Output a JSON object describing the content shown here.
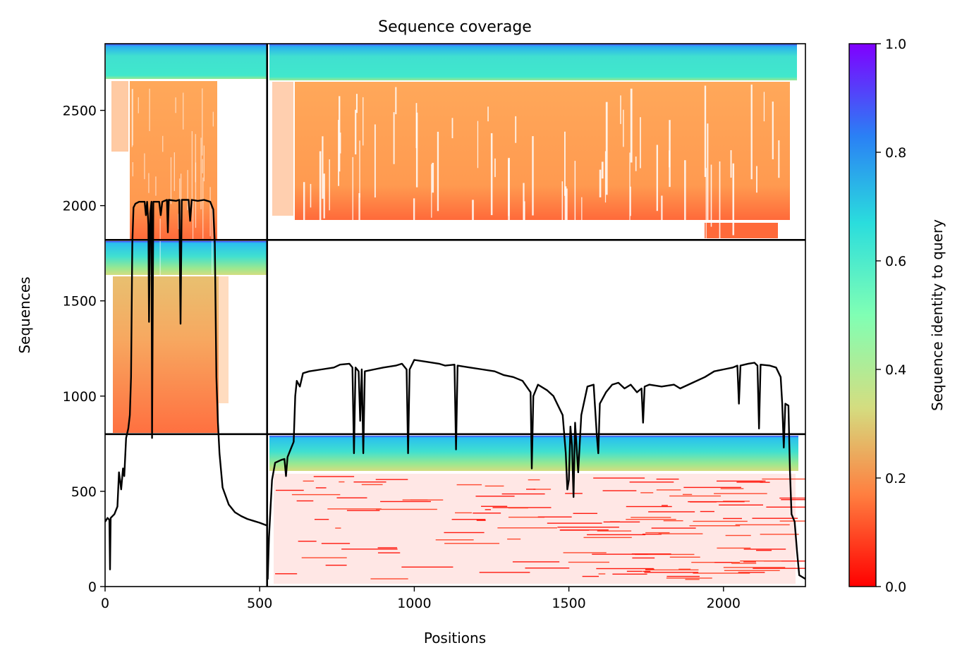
{
  "chart_data": {
    "type": "heatmap",
    "title": "Sequence coverage",
    "xlabel": "Positions",
    "ylabel": "Sequences",
    "xlim": [
      0,
      2265
    ],
    "ylim": [
      0,
      2850
    ],
    "xticks": [
      0,
      500,
      1000,
      1500,
      2000
    ],
    "yticks": [
      0,
      500,
      1000,
      1500,
      2000,
      2500
    ],
    "colorbar": {
      "label": "Sequence identity to query",
      "range": [
        0,
        1
      ],
      "ticks": [
        "0.0",
        "0.2",
        "0.4",
        "0.6",
        "0.8",
        "1.0"
      ],
      "colormap": "rainbow",
      "stops": [
        "#ff0000",
        "#ff7f40",
        "#d4dd80",
        "#80ffb4",
        "#2adddd",
        "#2a80f5",
        "#8000ff"
      ]
    },
    "blocks": [
      {
        "name": "chain-1-msa-upper",
        "x": [
          0,
          524
        ],
        "rows": [
          1820,
          2850
        ]
      },
      {
        "name": "chain-1-msa-lower",
        "x": [
          0,
          524
        ],
        "rows": [
          800,
          1820
        ]
      },
      {
        "name": "chain-2-msa-upper",
        "x": [
          524,
          2265
        ],
        "rows": [
          1820,
          2850
        ]
      },
      {
        "name": "chain-2-msa-lower",
        "x": [
          524,
          2265
        ],
        "rows": [
          0,
          800
        ]
      }
    ],
    "separators": {
      "x": [
        524
      ],
      "y": [
        800,
        1820
      ]
    },
    "coverage_series": {
      "name": "coverage",
      "color": "#000000",
      "points": [
        [
          0,
          340
        ],
        [
          8,
          360
        ],
        [
          14,
          350
        ],
        [
          16,
          90
        ],
        [
          18,
          360
        ],
        [
          30,
          380
        ],
        [
          40,
          420
        ],
        [
          45,
          600
        ],
        [
          52,
          510
        ],
        [
          58,
          620
        ],
        [
          62,
          580
        ],
        [
          68,
          780
        ],
        [
          75,
          830
        ],
        [
          80,
          900
        ],
        [
          84,
          1100
        ],
        [
          88,
          1800
        ],
        [
          92,
          1990
        ],
        [
          98,
          2010
        ],
        [
          110,
          2020
        ],
        [
          128,
          2020
        ],
        [
          132,
          1950
        ],
        [
          136,
          2020
        ],
        [
          140,
          1900
        ],
        [
          142,
          1390
        ],
        [
          146,
          1960
        ],
        [
          150,
          2020
        ],
        [
          152,
          780
        ],
        [
          156,
          2020
        ],
        [
          175,
          2020
        ],
        [
          180,
          1950
        ],
        [
          185,
          2020
        ],
        [
          200,
          2030
        ],
        [
          203,
          1860
        ],
        [
          206,
          2030
        ],
        [
          230,
          2025
        ],
        [
          240,
          2030
        ],
        [
          244,
          1380
        ],
        [
          248,
          2030
        ],
        [
          270,
          2030
        ],
        [
          275,
          1920
        ],
        [
          280,
          2030
        ],
        [
          300,
          2025
        ],
        [
          320,
          2030
        ],
        [
          340,
          2020
        ],
        [
          350,
          1980
        ],
        [
          355,
          1800
        ],
        [
          360,
          1100
        ],
        [
          365,
          860
        ],
        [
          370,
          700
        ],
        [
          380,
          520
        ],
        [
          400,
          430
        ],
        [
          420,
          390
        ],
        [
          440,
          370
        ],
        [
          460,
          355
        ],
        [
          480,
          345
        ],
        [
          500,
          335
        ],
        [
          524,
          320
        ],
        [
          526,
          40
        ],
        [
          530,
          260
        ],
        [
          540,
          560
        ],
        [
          550,
          650
        ],
        [
          570,
          665
        ],
        [
          580,
          670
        ],
        [
          585,
          580
        ],
        [
          590,
          680
        ],
        [
          600,
          720
        ],
        [
          610,
          760
        ],
        [
          615,
          1000
        ],
        [
          620,
          1080
        ],
        [
          630,
          1050
        ],
        [
          640,
          1120
        ],
        [
          660,
          1130
        ],
        [
          700,
          1140
        ],
        [
          740,
          1150
        ],
        [
          760,
          1165
        ],
        [
          790,
          1170
        ],
        [
          800,
          1150
        ],
        [
          805,
          700
        ],
        [
          810,
          1150
        ],
        [
          820,
          1130
        ],
        [
          825,
          870
        ],
        [
          830,
          1140
        ],
        [
          835,
          700
        ],
        [
          840,
          1130
        ],
        [
          870,
          1140
        ],
        [
          900,
          1150
        ],
        [
          940,
          1160
        ],
        [
          960,
          1170
        ],
        [
          975,
          1140
        ],
        [
          980,
          700
        ],
        [
          985,
          1140
        ],
        [
          1000,
          1190
        ],
        [
          1040,
          1180
        ],
        [
          1080,
          1170
        ],
        [
          1100,
          1160
        ],
        [
          1130,
          1165
        ],
        [
          1135,
          720
        ],
        [
          1140,
          1160
        ],
        [
          1180,
          1150
        ],
        [
          1220,
          1140
        ],
        [
          1260,
          1130
        ],
        [
          1290,
          1110
        ],
        [
          1320,
          1100
        ],
        [
          1350,
          1080
        ],
        [
          1376,
          1020
        ],
        [
          1380,
          620
        ],
        [
          1385,
          1000
        ],
        [
          1400,
          1060
        ],
        [
          1430,
          1030
        ],
        [
          1450,
          1000
        ],
        [
          1480,
          900
        ],
        [
          1490,
          700
        ],
        [
          1495,
          510
        ],
        [
          1500,
          560
        ],
        [
          1505,
          840
        ],
        [
          1510,
          740
        ],
        [
          1515,
          470
        ],
        [
          1520,
          860
        ],
        [
          1530,
          600
        ],
        [
          1540,
          900
        ],
        [
          1560,
          1050
        ],
        [
          1580,
          1060
        ],
        [
          1590,
          800
        ],
        [
          1595,
          700
        ],
        [
          1600,
          960
        ],
        [
          1620,
          1020
        ],
        [
          1640,
          1060
        ],
        [
          1660,
          1070
        ],
        [
          1680,
          1040
        ],
        [
          1700,
          1060
        ],
        [
          1720,
          1020
        ],
        [
          1735,
          1040
        ],
        [
          1740,
          860
        ],
        [
          1745,
          1050
        ],
        [
          1760,
          1060
        ],
        [
          1800,
          1050
        ],
        [
          1840,
          1060
        ],
        [
          1860,
          1040
        ],
        [
          1900,
          1070
        ],
        [
          1940,
          1100
        ],
        [
          1970,
          1130
        ],
        [
          2000,
          1140
        ],
        [
          2030,
          1150
        ],
        [
          2045,
          1160
        ],
        [
          2050,
          960
        ],
        [
          2055,
          1160
        ],
        [
          2080,
          1170
        ],
        [
          2100,
          1175
        ],
        [
          2110,
          1160
        ],
        [
          2115,
          830
        ],
        [
          2120,
          1165
        ],
        [
          2150,
          1160
        ],
        [
          2170,
          1150
        ],
        [
          2185,
          1100
        ],
        [
          2190,
          960
        ],
        [
          2195,
          730
        ],
        [
          2200,
          960
        ],
        [
          2210,
          950
        ],
        [
          2215,
          600
        ],
        [
          2220,
          380
        ],
        [
          2230,
          340
        ],
        [
          2238,
          180
        ],
        [
          2245,
          60
        ],
        [
          2255,
          50
        ],
        [
          2265,
          40
        ]
      ]
    }
  }
}
